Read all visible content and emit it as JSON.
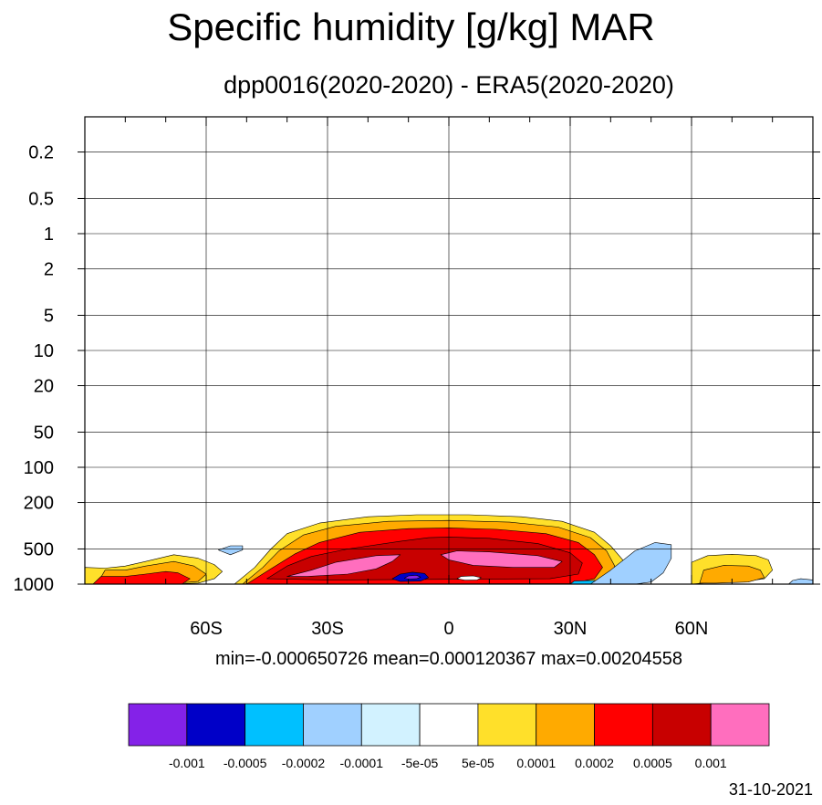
{
  "title": "Specific humidity [g/kg] MAR",
  "subtitle": "dpp0016(2020-2020) - ERA5(2020-2020)",
  "stats": {
    "text": "min=-0.000650726   mean=0.000120367   max=0.00204558",
    "min": -0.000650726,
    "mean": 0.000120367,
    "max": 0.00204558
  },
  "date": "31-10-2021",
  "chart_data": {
    "type": "contour",
    "xlabel": "",
    "ylabel": "",
    "x_range": [
      -90,
      90
    ],
    "y_range_hPa": [
      1000,
      0.1
    ],
    "y_scale": "log",
    "grid": true,
    "x_ticks": [
      {
        "value": -60,
        "label": "60S"
      },
      {
        "value": -30,
        "label": "30S"
      },
      {
        "value": 0,
        "label": "0"
      },
      {
        "value": 30,
        "label": "30N"
      },
      {
        "value": 60,
        "label": "60N"
      }
    ],
    "y_ticks": [
      {
        "value": 0.2,
        "label": "0.2"
      },
      {
        "value": 0.5,
        "label": "0.5"
      },
      {
        "value": 1,
        "label": "1"
      },
      {
        "value": 2,
        "label": "2"
      },
      {
        "value": 5,
        "label": "5"
      },
      {
        "value": 10,
        "label": "10"
      },
      {
        "value": 20,
        "label": "20"
      },
      {
        "value": 50,
        "label": "50"
      },
      {
        "value": 100,
        "label": "100"
      },
      {
        "value": 200,
        "label": "200"
      },
      {
        "value": 500,
        "label": "500"
      },
      {
        "value": 1000,
        "label": "1000"
      }
    ],
    "levels": [
      "-0.001",
      "-0.0005",
      "-0.0002",
      "-0.0001",
      "-5e-05",
      "5e-05",
      "0.0001",
      "0.0002",
      "0.0005",
      "0.001"
    ],
    "colors": [
      "#8422e8",
      "#0000c8",
      "#00c0ff",
      "#a0d0ff",
      "#d2f2ff",
      "#ffffff",
      "#ffe02a",
      "#ffaa00",
      "#ff0000",
      "#c80000",
      "#ff6ebe"
    ],
    "regions": [
      {
        "name": "missing-terrain",
        "level": -1,
        "color": "#808080",
        "outline": [
          [
            -90,
            1000
          ],
          [
            -90,
            750
          ],
          [
            -87,
            750
          ],
          [
            -87,
            1000
          ]
        ]
      },
      {
        "name": "sh-band-yellow",
        "level": 1,
        "outline": [
          [
            -90,
            1000
          ],
          [
            -90,
            720
          ],
          [
            -85,
            730
          ],
          [
            -80,
            700
          ],
          [
            -75,
            640
          ],
          [
            -68,
            560
          ],
          [
            -62,
            600
          ],
          [
            -58,
            680
          ],
          [
            -56,
            780
          ],
          [
            -58,
            900
          ],
          [
            -62,
            980
          ],
          [
            -70,
            1000
          ]
        ]
      },
      {
        "name": "sh-band-orange",
        "level": 2,
        "outline": [
          [
            -87,
            1000
          ],
          [
            -85,
            760
          ],
          [
            -80,
            760
          ],
          [
            -75,
            700
          ],
          [
            -68,
            640
          ],
          [
            -63,
            700
          ],
          [
            -60,
            820
          ],
          [
            -62,
            950
          ],
          [
            -70,
            1000
          ]
        ]
      },
      {
        "name": "sh-band-red",
        "level": 3,
        "outline": [
          [
            -88,
            1000
          ],
          [
            -86,
            860
          ],
          [
            -80,
            860
          ],
          [
            -75,
            820
          ],
          [
            -70,
            780
          ],
          [
            -67,
            800
          ],
          [
            -64,
            900
          ],
          [
            -66,
            1000
          ]
        ]
      },
      {
        "name": "tropics-yellow",
        "level": 1,
        "outline": [
          [
            -53,
            1000
          ],
          [
            -48,
            720
          ],
          [
            -44,
            500
          ],
          [
            -40,
            370
          ],
          [
            -32,
            300
          ],
          [
            -20,
            265
          ],
          [
            -8,
            255
          ],
          [
            5,
            255
          ],
          [
            18,
            265
          ],
          [
            28,
            290
          ],
          [
            36,
            360
          ],
          [
            40,
            470
          ],
          [
            43,
            620
          ],
          [
            43,
            850
          ],
          [
            40,
            960
          ],
          [
            -45,
            1000
          ]
        ]
      },
      {
        "name": "tropics-orange",
        "level": 2,
        "outline": [
          [
            -51,
            1000
          ],
          [
            -46,
            720
          ],
          [
            -42,
            520
          ],
          [
            -36,
            380
          ],
          [
            -28,
            320
          ],
          [
            -15,
            290
          ],
          [
            0,
            285
          ],
          [
            15,
            295
          ],
          [
            27,
            325
          ],
          [
            35,
            400
          ],
          [
            39,
            520
          ],
          [
            41,
            700
          ],
          [
            40,
            900
          ],
          [
            36,
            990
          ],
          [
            -40,
            1000
          ]
        ]
      },
      {
        "name": "tropics-red",
        "level": 3,
        "outline": [
          [
            -50,
            1000
          ],
          [
            -44,
            740
          ],
          [
            -38,
            550
          ],
          [
            -32,
            440
          ],
          [
            -22,
            360
          ],
          [
            -10,
            335
          ],
          [
            0,
            330
          ],
          [
            12,
            340
          ],
          [
            24,
            370
          ],
          [
            32,
            440
          ],
          [
            36,
            560
          ],
          [
            38,
            720
          ],
          [
            36,
            900
          ],
          [
            30,
            990
          ],
          [
            -40,
            1000
          ]
        ]
      },
      {
        "name": "tropics-darkred",
        "level": 4,
        "outline": [
          [
            -45,
            900
          ],
          [
            -40,
            700
          ],
          [
            -34,
            580
          ],
          [
            -25,
            500
          ],
          [
            -12,
            430
          ],
          [
            -5,
            400
          ],
          [
            0,
            395
          ],
          [
            10,
            405
          ],
          [
            22,
            450
          ],
          [
            30,
            540
          ],
          [
            33,
            660
          ],
          [
            32,
            820
          ],
          [
            25,
            900
          ],
          [
            -5,
            910
          ],
          [
            -30,
            920
          ]
        ]
      },
      {
        "name": "pink-west",
        "level": 5,
        "outline": [
          [
            -40,
            860
          ],
          [
            -34,
            760
          ],
          [
            -28,
            650
          ],
          [
            -18,
            570
          ],
          [
            -12,
            560
          ],
          [
            -14,
            640
          ],
          [
            -18,
            740
          ],
          [
            -25,
            820
          ],
          [
            -35,
            860
          ]
        ]
      },
      {
        "name": "pink-east",
        "level": 5,
        "outline": [
          [
            -2,
            560
          ],
          [
            2,
            520
          ],
          [
            10,
            530
          ],
          [
            22,
            570
          ],
          [
            28,
            640
          ],
          [
            26,
            720
          ],
          [
            16,
            720
          ],
          [
            6,
            690
          ],
          [
            0,
            620
          ]
        ]
      },
      {
        "name": "blue-cell",
        "level": -4,
        "outline": [
          [
            -14,
            900
          ],
          [
            -12,
            820
          ],
          [
            -9,
            790
          ],
          [
            -6,
            810
          ],
          [
            -5,
            880
          ],
          [
            -7,
            940
          ],
          [
            -12,
            950
          ]
        ]
      },
      {
        "name": "blue-core",
        "level": -5,
        "outline": [
          [
            -11,
            890
          ],
          [
            -10,
            850
          ],
          [
            -8,
            840
          ],
          [
            -7,
            870
          ],
          [
            -8,
            900
          ],
          [
            -10,
            905
          ]
        ]
      },
      {
        "name": "white-cell-center",
        "level": 0,
        "outline": [
          [
            2,
            900
          ],
          [
            3,
            860
          ],
          [
            6,
            850
          ],
          [
            8,
            880
          ],
          [
            7,
            920
          ],
          [
            4,
            925
          ]
        ]
      },
      {
        "name": "blue-strip-north",
        "level": -3,
        "outline": [
          [
            30,
            1000
          ],
          [
            31,
            940
          ],
          [
            36,
            930
          ],
          [
            42,
            940
          ],
          [
            47,
            960
          ],
          [
            48,
            1000
          ]
        ]
      },
      {
        "name": "lightblue-north",
        "level": -2,
        "outline": [
          [
            35,
            1000
          ],
          [
            40,
            760
          ],
          [
            46,
            520
          ],
          [
            51,
            440
          ],
          [
            55,
            460
          ],
          [
            55,
            600
          ],
          [
            53,
            800
          ],
          [
            50,
            960
          ],
          [
            46,
            1000
          ]
        ]
      },
      {
        "name": "lightblue-south-blob",
        "level": -2,
        "outline": [
          [
            -57,
            510
          ],
          [
            -54,
            470
          ],
          [
            -51,
            470
          ],
          [
            -51,
            510
          ],
          [
            -54,
            560
          ]
        ]
      },
      {
        "name": "nh-yellow",
        "level": 1,
        "outline": [
          [
            60,
            1000
          ],
          [
            60,
            650
          ],
          [
            64,
            570
          ],
          [
            70,
            555
          ],
          [
            76,
            570
          ],
          [
            79,
            620
          ],
          [
            80,
            760
          ],
          [
            78,
            900
          ],
          [
            72,
            960
          ],
          [
            64,
            970
          ]
        ]
      },
      {
        "name": "nh-orange",
        "level": 2,
        "outline": [
          [
            62,
            980
          ],
          [
            63,
            760
          ],
          [
            68,
            690
          ],
          [
            74,
            700
          ],
          [
            77,
            760
          ],
          [
            78,
            880
          ],
          [
            74,
            960
          ],
          [
            66,
            980
          ]
        ]
      },
      {
        "name": "lightblue-pole",
        "level": -2,
        "outline": [
          [
            84,
            1000
          ],
          [
            85,
            930
          ],
          [
            87,
            900
          ],
          [
            90,
            920
          ],
          [
            90,
            1000
          ]
        ]
      }
    ]
  }
}
